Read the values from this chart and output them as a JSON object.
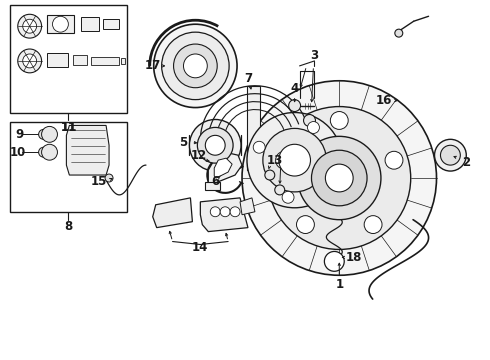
{
  "bg_color": "#ffffff",
  "line_color": "#1a1a1a",
  "fig_width": 4.9,
  "fig_height": 3.6,
  "dpi": 100,
  "font_size": 8.5,
  "font_weight": "bold"
}
